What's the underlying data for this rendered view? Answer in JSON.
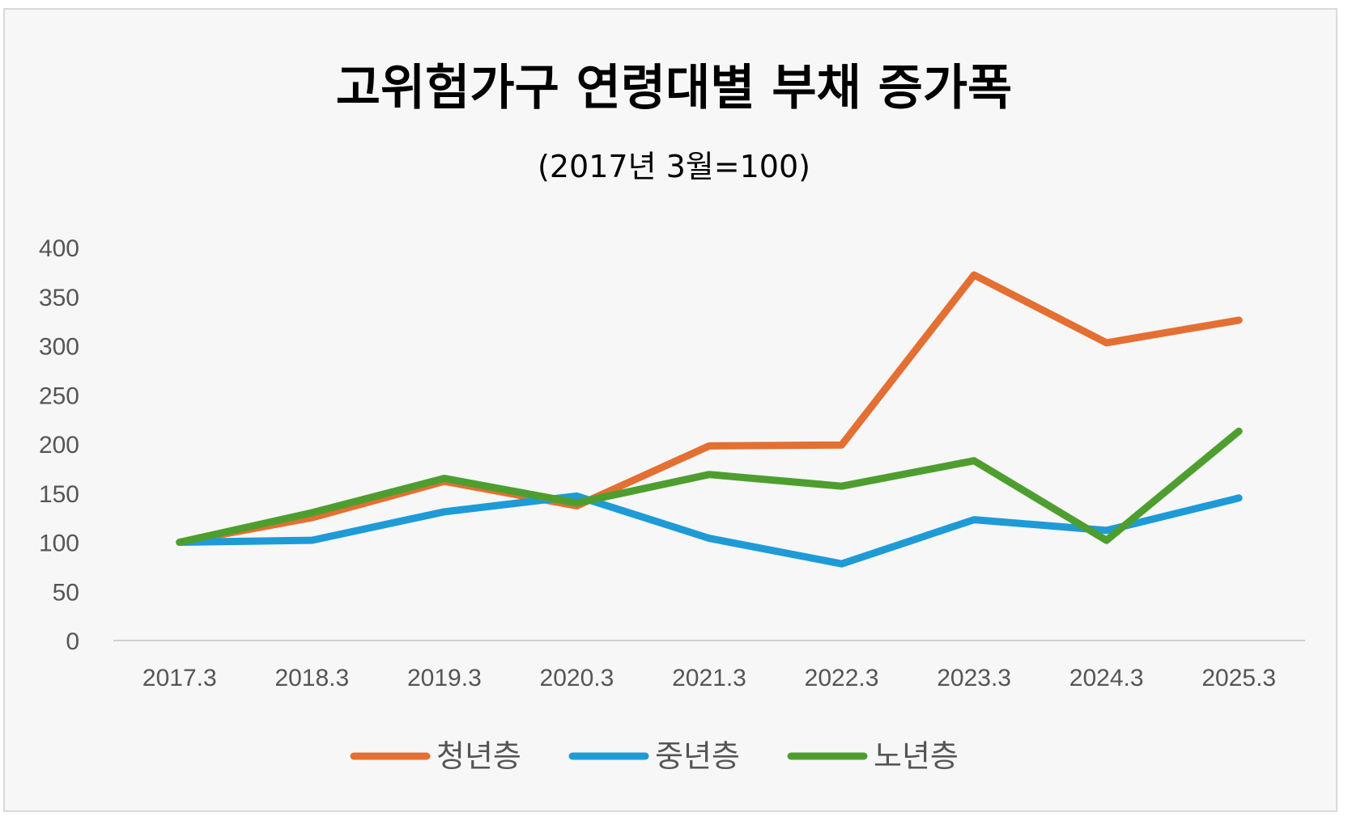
{
  "chart_data": {
    "type": "line",
    "title": "고위험가구 연령대별 부채 증가폭",
    "subtitle": "(2017년 3월=100)",
    "xlabel": "",
    "ylabel": "",
    "ylim": [
      0,
      400
    ],
    "yticks": [
      "0",
      "50",
      "100",
      "150",
      "200",
      "250",
      "300",
      "350",
      "400"
    ],
    "categories": [
      "2017.3",
      "2018.3",
      "2019.3",
      "2020.3",
      "2021.3",
      "2022.3",
      "2023.3",
      "2024.3",
      "2025.3"
    ],
    "grid": false,
    "legend_position": "bottom",
    "series": [
      {
        "name": "청년층",
        "color": "#e46f32",
        "values": [
          100,
          125,
          162,
          137,
          198,
          199,
          372,
          303,
          326
        ]
      },
      {
        "name": "중년층",
        "color": "#1e9bd7",
        "values": [
          100,
          102,
          131,
          147,
          104,
          78,
          123,
          112,
          145
        ]
      },
      {
        "name": "노년층",
        "color": "#4e9e2f",
        "values": [
          100,
          130,
          165,
          140,
          169,
          157,
          183,
          102,
          213
        ]
      }
    ]
  }
}
